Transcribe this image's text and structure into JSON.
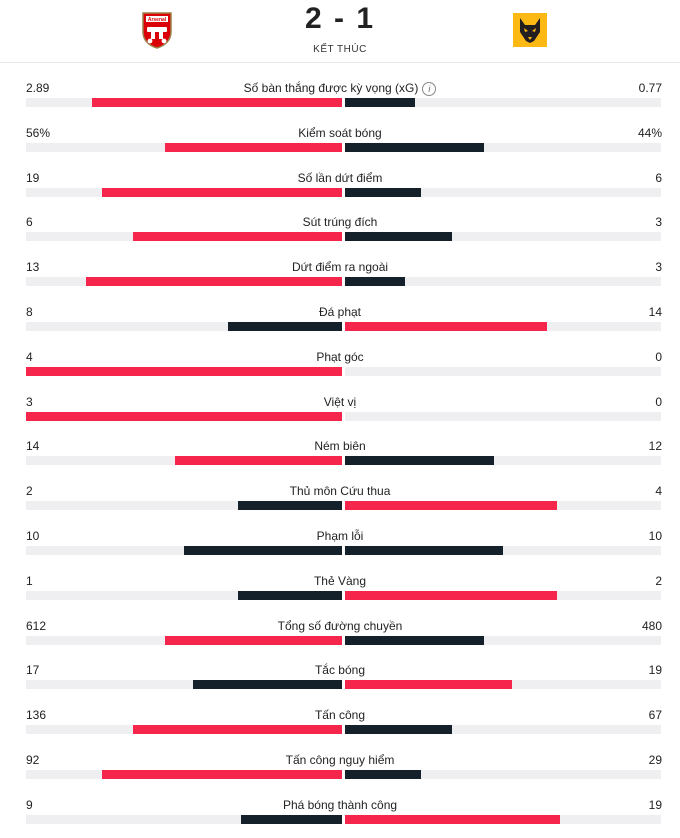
{
  "match": {
    "score": "2 - 1",
    "status": "KẾT THÚC",
    "home_logo_text": "Arsenal"
  },
  "colors": {
    "leader": "#f6254b",
    "trailer": "#14212b",
    "track": "#efeff2"
  },
  "stats": [
    {
      "label": "Số bàn thắng được kỳ vọng (xG)",
      "home": "2.89",
      "away": "0.77",
      "home_pct": 0.79,
      "away_pct": 0.22,
      "info": true
    },
    {
      "label": "Kiểm soát bóng",
      "home": "56%",
      "away": "44%",
      "home_pct": 0.56,
      "away_pct": 0.44
    },
    {
      "label": "Số lần dứt điểm",
      "home": "19",
      "away": "6",
      "home_pct": 0.76,
      "away_pct": 0.24
    },
    {
      "label": "Sút trúng đích",
      "home": "6",
      "away": "3",
      "home_pct": 0.66,
      "away_pct": 0.34
    },
    {
      "label": "Dứt điểm ra ngoài",
      "home": "13",
      "away": "3",
      "home_pct": 0.81,
      "away_pct": 0.19
    },
    {
      "label": "Đá phạt",
      "home": "8",
      "away": "14",
      "home_pct": 0.36,
      "away_pct": 0.64
    },
    {
      "label": "Phạt góc",
      "home": "4",
      "away": "0",
      "home_pct": 1.0,
      "away_pct": 0.0
    },
    {
      "label": "Việt vị",
      "home": "3",
      "away": "0",
      "home_pct": 1.0,
      "away_pct": 0.0
    },
    {
      "label": "Ném biên",
      "home": "14",
      "away": "12",
      "home_pct": 0.53,
      "away_pct": 0.47
    },
    {
      "label": "Thủ môn Cứu thua",
      "home": "2",
      "away": "4",
      "home_pct": 0.33,
      "away_pct": 0.67
    },
    {
      "label": "Phạm lỗi",
      "home": "10",
      "away": "10",
      "home_pct": 0.5,
      "away_pct": 0.5,
      "tie": true
    },
    {
      "label": "Thẻ Vàng",
      "home": "1",
      "away": "2",
      "home_pct": 0.33,
      "away_pct": 0.67
    },
    {
      "label": "Tổng số đường chuyền",
      "home": "612",
      "away": "480",
      "home_pct": 0.56,
      "away_pct": 0.44
    },
    {
      "label": "Tắc bóng",
      "home": "17",
      "away": "19",
      "home_pct": 0.47,
      "away_pct": 0.53
    },
    {
      "label": "Tấn công",
      "home": "136",
      "away": "67",
      "home_pct": 0.66,
      "away_pct": 0.34
    },
    {
      "label": "Tấn công nguy hiểm",
      "home": "92",
      "away": "29",
      "home_pct": 0.76,
      "away_pct": 0.24
    },
    {
      "label": "Phá bóng thành công",
      "home": "9",
      "away": "19",
      "home_pct": 0.32,
      "away_pct": 0.68
    }
  ]
}
